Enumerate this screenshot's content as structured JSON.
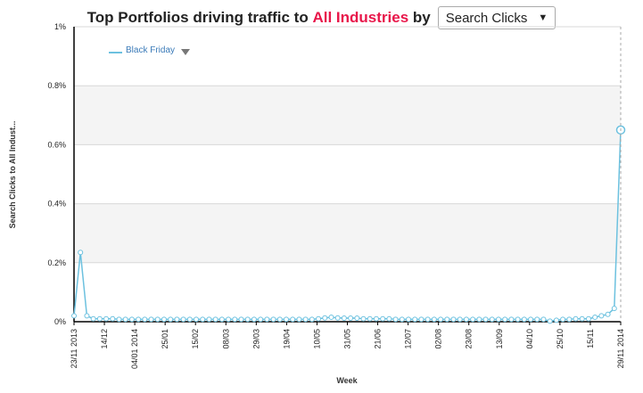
{
  "header": {
    "title_prefix": "Top Portfolios driving traffic to ",
    "title_accent": "All Industries",
    "title_suffix": " by",
    "metric_selected": "Search Clicks",
    "metric_caret": "▼"
  },
  "colors": {
    "accent": "#e8174a",
    "series": "#6cc1df",
    "band": "#f4f4f4"
  },
  "chart_data": {
    "type": "line",
    "title": "",
    "xlabel": "Week",
    "ylabel": "Search Clicks to All Indust...",
    "ylim": [
      0,
      1
    ],
    "yticks": [
      "0%",
      "0.2%",
      "0.4%",
      "0.6%",
      "0.8%",
      "1%"
    ],
    "xticks": [
      "23/11 2013",
      "14/12",
      "04/01 2014",
      "25/01",
      "15/02",
      "08/03",
      "29/03",
      "19/04",
      "10/05",
      "31/05",
      "21/06",
      "12/07",
      "02/08",
      "23/08",
      "13/09",
      "04/10",
      "25/10",
      "15/11",
      "29/11 2014"
    ],
    "grid": true,
    "legend": "top-left",
    "series": [
      {
        "name": "Black Friday",
        "values": [
          0.02,
          0.235,
          0.02,
          0.01,
          0.01,
          0.01,
          0.01,
          0.008,
          0.008,
          0.008,
          0.008,
          0.008,
          0.008,
          0.008,
          0.008,
          0.008,
          0.008,
          0.008,
          0.008,
          0.008,
          0.008,
          0.008,
          0.008,
          0.008,
          0.008,
          0.008,
          0.008,
          0.008,
          0.008,
          0.008,
          0.008,
          0.008,
          0.008,
          0.008,
          0.008,
          0.008,
          0.008,
          0.008,
          0.01,
          0.013,
          0.015,
          0.013,
          0.012,
          0.012,
          0.012,
          0.01,
          0.01,
          0.01,
          0.01,
          0.01,
          0.008,
          0.008,
          0.008,
          0.008,
          0.008,
          0.008,
          0.008,
          0.008,
          0.008,
          0.008,
          0.008,
          0.008,
          0.008,
          0.008,
          0.008,
          0.008,
          0.008,
          0.008,
          0.008,
          0.008,
          0.008,
          0.008,
          0.008,
          0.008,
          0.002,
          0.005,
          0.008,
          0.008,
          0.01,
          0.01,
          0.01,
          0.015,
          0.02,
          0.025,
          0.045,
          0.65
        ]
      }
    ]
  }
}
